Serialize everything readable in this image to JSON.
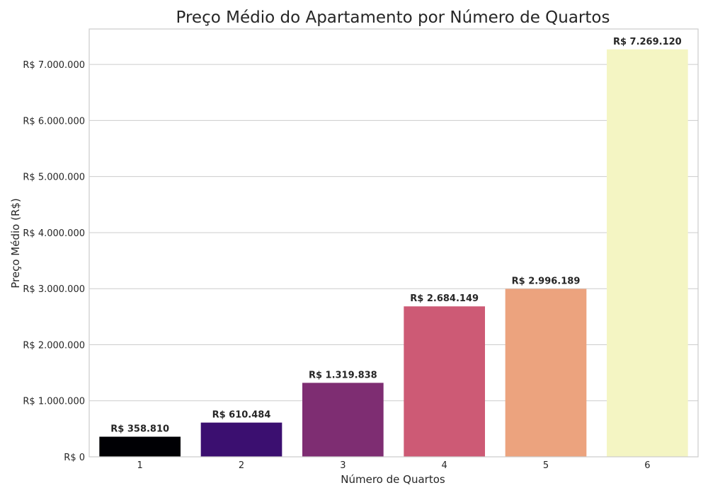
{
  "chart_data": {
    "type": "bar",
    "title": "Preço Médio do Apartamento por Número de Quartos",
    "xlabel": "Número de Quartos",
    "ylabel": "Preço Médio (R$)",
    "categories": [
      "1",
      "2",
      "3",
      "4",
      "5",
      "6"
    ],
    "values": [
      358810,
      610484,
      1319838,
      2684149,
      2996189,
      7269120
    ],
    "data_labels": [
      "R$ 358.810",
      "R$ 610.484",
      "R$ 1.319.838",
      "R$ 2.684.149",
      "R$ 2.996.189",
      "R$ 7.269.120"
    ],
    "colors": [
      "#000004",
      "#3b0f70",
      "#7e2d72",
      "#cd5a75",
      "#eca37e",
      "#f4f5c3"
    ],
    "yticks": [
      0,
      1000000,
      2000000,
      3000000,
      4000000,
      5000000,
      6000000,
      7000000
    ],
    "ytick_labels": [
      "R$ 0",
      "R$ 1.000.000",
      "R$ 2.000.000",
      "R$ 3.000.000",
      "R$ 4.000.000",
      "R$ 5.000.000",
      "R$ 6.000.000",
      "R$ 7.000.000"
    ],
    "ylim": [
      0,
      7632576
    ],
    "grid": "horizontal"
  }
}
